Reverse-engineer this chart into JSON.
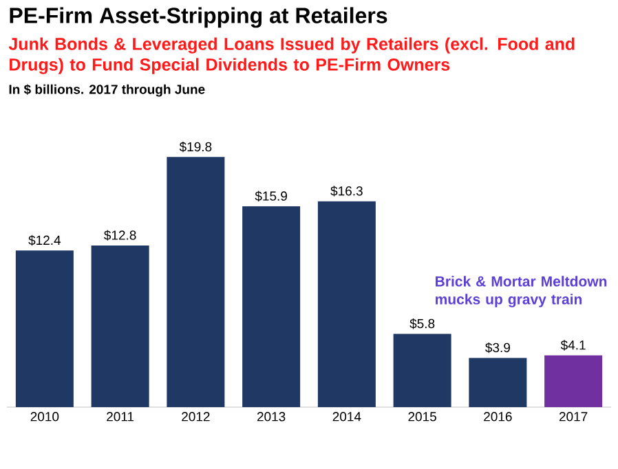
{
  "chart_data": {
    "type": "bar",
    "title": "PE-Firm Asset-Stripping at Retailers",
    "subtitle": "Junk Bonds & Leveraged Loans Issued by Retailers (excl. Food and Drugs) to Fund Special Dividends to PE-Firm Owners",
    "categories": [
      "2010",
      "2011",
      "2012",
      "2013",
      "2014",
      "2015",
      "2016",
      "2017"
    ],
    "values": [
      12.4,
      12.8,
      19.8,
      15.9,
      16.3,
      5.8,
      3.9,
      4.1
    ],
    "colors": [
      "#1f3864",
      "#1f3864",
      "#1f3864",
      "#1f3864",
      "#1f3864",
      "#1f3864",
      "#1f3864",
      "#7030a0"
    ],
    "value_labels": [
      "$12.4",
      "$12.8",
      "$19.8",
      "$15.9",
      "$16.3",
      "$5.8",
      "$3.9",
      "$4.1"
    ],
    "annotations": [
      "In $ billions. 2017 through June",
      "Brick & Mortar Meltdown mucks up gravy train"
    ]
  }
}
